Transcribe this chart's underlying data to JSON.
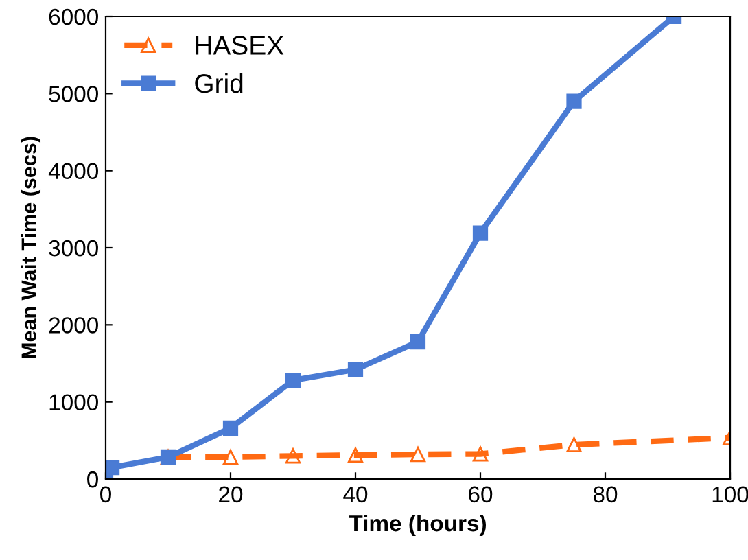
{
  "chart_data": {
    "type": "line",
    "xlabel": "Time (hours)",
    "ylabel": "Mean Wait Time (secs)",
    "xlim": [
      0,
      100
    ],
    "xticks": [
      0,
      20,
      40,
      60,
      80,
      100
    ],
    "ylim": [
      0,
      6000
    ],
    "yticks": [
      0,
      1000,
      2000,
      3000,
      4000,
      5000,
      6000
    ],
    "grid": false,
    "legend": "top left",
    "series": [
      {
        "name": "HASEX",
        "color": "#ff6a13",
        "marker": "triangle",
        "line_style": "dashed",
        "x": [
          10,
          20,
          30,
          40,
          50,
          60,
          75,
          100
        ],
        "values": [
          285,
          285,
          300,
          310,
          320,
          325,
          445,
          535
        ]
      },
      {
        "name": "Grid",
        "color": "#4a7bd4",
        "marker": "square",
        "line_style": "solid",
        "x": [
          0,
          1,
          10,
          20,
          30,
          40,
          50,
          60,
          75,
          91
        ],
        "values": [
          50,
          150,
          285,
          660,
          1280,
          1420,
          1780,
          3190,
          4900,
          6000
        ]
      }
    ]
  }
}
